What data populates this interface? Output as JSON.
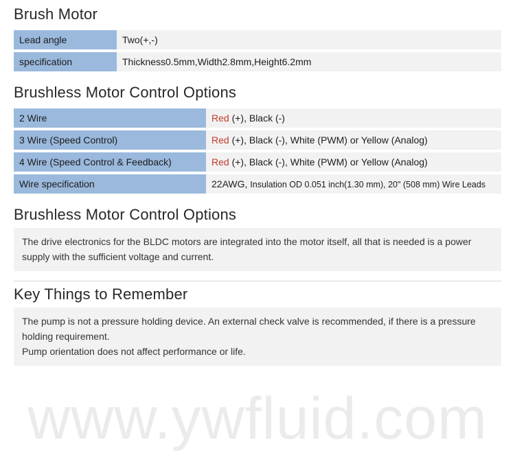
{
  "colors": {
    "key_bg": "#9ab9dd",
    "val_bg": "#f2f2f2",
    "title_color": "#272727",
    "red_text": "#c0392b",
    "watermark_color": "#dcdcdc",
    "divider_color": "#d7d7d7",
    "background": "#ffffff"
  },
  "typography": {
    "title_fontsize": 22,
    "title_weight": 300,
    "body_fontsize": 14,
    "small_fontsize": 12.5,
    "watermark_fontsize": 86
  },
  "section1": {
    "title": "Brush Motor",
    "rows": [
      {
        "key": "Lead angle",
        "val": "Two(+,-)"
      },
      {
        "key": "specification",
        "val": "Thickness0.5mm,Width2.8mm,Height6.2mm"
      }
    ]
  },
  "section2": {
    "title": "Brushless Motor Control Options",
    "rows": [
      {
        "key": "2 Wire",
        "red": "Red",
        "rest": " (+), Black (-)"
      },
      {
        "key": "3 Wire (Speed Control)",
        "red": "Red",
        "rest": " (+), Black (-), White (PWM) or Yellow (Analog)"
      },
      {
        "key": "4 Wire (Speed Control & Feedback)",
        "red": "Red",
        "rest": " (+), Black (-), White (PWM) or Yellow (Analog)"
      }
    ],
    "wire_spec_key": "Wire specification",
    "wire_spec_lead": "22AWG, ",
    "wire_spec_small": "Insulation OD 0.051 inch(1.30 mm), 20\" (508 mm) Wire Leads"
  },
  "section3": {
    "title": "Brushless Motor Control Options",
    "note": "The drive electronics for the BLDC motors are integrated into the motor itself, all that is needed is a power supply with the sufficient voltage and current."
  },
  "section4": {
    "title": "Key Things to Remember",
    "note_line1": "The pump is not a pressure holding device. An external check valve is recommended, if there is a pressure holding requirement.",
    "note_line2": "Pump orientation does not affect performance or life."
  },
  "watermark": "www.ywfluid.com"
}
